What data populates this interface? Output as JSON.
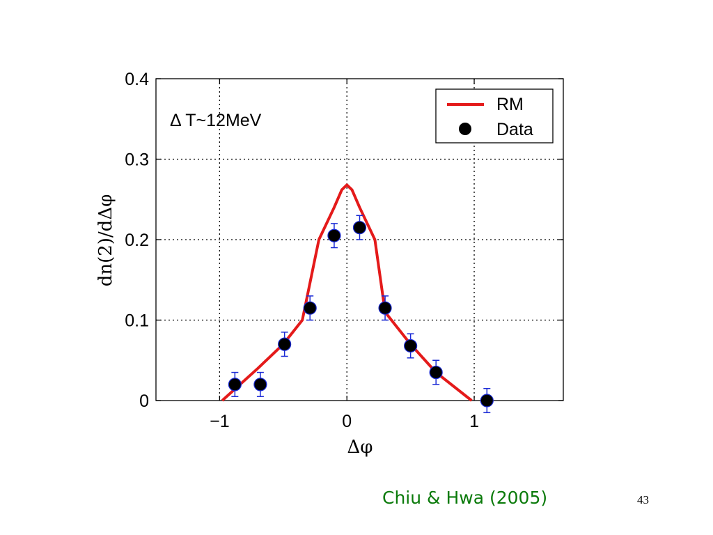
{
  "slide": {
    "citation": "Chiu & Hwa (2005)",
    "page_number": "43"
  },
  "chart_data": {
    "type": "line",
    "xlabel": "Δφ",
    "ylabel": "dn(2)/dΔφ",
    "xlim": [
      -1.5,
      1.7
    ],
    "ylim": [
      0,
      0.4
    ],
    "xticks": [
      -1,
      0,
      1
    ],
    "xtick_labels": [
      "−1",
      "0",
      "1"
    ],
    "yticks": [
      0,
      0.1,
      0.2,
      0.3,
      0.4
    ],
    "ytick_labels": [
      "0",
      "0.1",
      "0.2",
      "0.3",
      "0.4"
    ],
    "grid": true,
    "legend_position": "top-right",
    "annotation": "Δ T~12MeV",
    "series": [
      {
        "name": "RM",
        "kind": "line",
        "color": "#e41a1a",
        "x": [
          -0.98,
          -0.7,
          -0.5,
          -0.35,
          -0.22,
          -0.1,
          -0.04,
          0.0,
          0.04,
          0.1,
          0.22,
          0.3,
          0.5,
          0.7,
          0.98
        ],
        "y": [
          0.0,
          0.04,
          0.07,
          0.1,
          0.2,
          0.24,
          0.262,
          0.268,
          0.262,
          0.24,
          0.2,
          0.11,
          0.07,
          0.035,
          0.0
        ]
      },
      {
        "name": "Data",
        "kind": "points",
        "color": "#000000",
        "error_color": "#1a2ad6",
        "x": [
          -0.88,
          -0.68,
          -0.49,
          -0.29,
          -0.1,
          0.1,
          0.3,
          0.5,
          0.7,
          1.1
        ],
        "y": [
          0.02,
          0.02,
          0.07,
          0.115,
          0.205,
          0.215,
          0.115,
          0.068,
          0.035,
          0.0
        ],
        "err": [
          0.015,
          0.015,
          0.015,
          0.015,
          0.015,
          0.015,
          0.015,
          0.015,
          0.015,
          0.015
        ]
      }
    ]
  }
}
